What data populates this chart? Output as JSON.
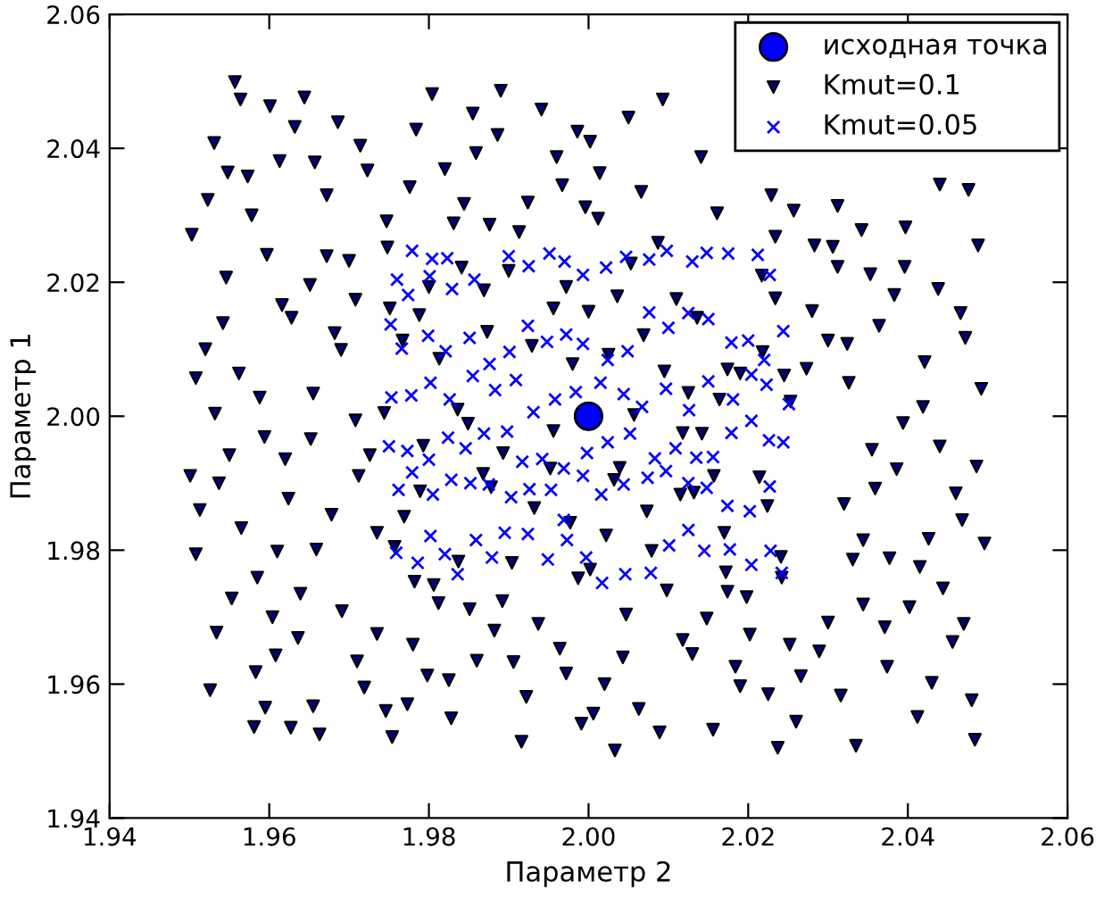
{
  "chart_data": {
    "type": "scatter",
    "xlabel": "Параметр 2",
    "ylabel": "Параметр 1",
    "xlim": [
      1.94,
      2.06
    ],
    "ylim": [
      1.94,
      2.06
    ],
    "xticks": [
      {
        "value": 1.94,
        "label": "1.94"
      },
      {
        "value": 1.96,
        "label": "1.96"
      },
      {
        "value": 1.98,
        "label": "1.98"
      },
      {
        "value": 2.0,
        "label": "2.00"
      },
      {
        "value": 2.02,
        "label": "2.02"
      },
      {
        "value": 2.04,
        "label": "2.04"
      },
      {
        "value": 2.06,
        "label": "2.06"
      }
    ],
    "yticks": [
      {
        "value": 1.94,
        "label": "1.94"
      },
      {
        "value": 1.96,
        "label": "1.96"
      },
      {
        "value": 1.98,
        "label": "1.98"
      },
      {
        "value": 2.0,
        "label": "2.00"
      },
      {
        "value": 2.02,
        "label": "2.02"
      },
      {
        "value": 2.04,
        "label": "2.04"
      },
      {
        "value": 2.06,
        "label": "2.06"
      }
    ],
    "grid": false,
    "legend": "top right",
    "series": [
      {
        "name": "исходная точка",
        "color": "#0000ff",
        "marker": "circle",
        "x": [
          2.0
        ],
        "values": [
          2.0
        ]
      },
      {
        "name": "Kmut=0.1",
        "color": "#000080",
        "marker": "triangle",
        "x": [
          1.9557,
          1.9564,
          1.9601,
          1.9644,
          1.9531,
          1.9548,
          1.9573,
          1.9523,
          1.9613,
          1.9632,
          1.9657,
          1.9686,
          1.9672,
          1.9714,
          1.9723,
          1.9503,
          1.9578,
          1.9546,
          1.9597,
          1.9672,
          1.97,
          1.9651,
          1.952,
          1.9542,
          1.9508,
          1.9562,
          1.9616,
          1.9628,
          1.9682,
          1.969,
          1.9708,
          1.9532,
          1.9588,
          1.9594,
          1.955,
          1.9501,
          1.9537,
          1.9513,
          1.9508,
          1.9565,
          1.962,
          1.9624,
          1.9655,
          1.9652,
          1.9678,
          1.9708,
          1.9712,
          1.9726,
          1.9744,
          1.9735,
          1.961,
          1.9659,
          1.9585,
          1.9553,
          1.9534,
          1.9639,
          1.9604,
          1.9691,
          1.9636,
          1.9608,
          1.9583,
          1.9526,
          1.9595,
          1.9581,
          1.9627,
          1.9655,
          1.9663,
          1.971,
          1.9719,
          1.9735,
          1.9746,
          1.9754,
          1.9773,
          1.978,
          1.9798,
          1.9825,
          1.9828,
          1.9812,
          1.9782,
          1.9851,
          1.9882,
          1.9892,
          1.986,
          1.9906,
          1.9922,
          1.9916,
          1.9937,
          1.9964,
          1.9972,
          1.9991,
          2.0006,
          2.002,
          2.0033,
          2.0043,
          2.0047,
          2.0063,
          2.0089,
          2.0098,
          2.0118,
          2.013,
          2.0148,
          2.0156,
          2.0184,
          2.019,
          2.0198,
          2.0202,
          2.0225,
          2.0237,
          2.0252,
          2.026,
          2.0266,
          2.0289,
          2.03,
          2.0316,
          2.032,
          2.0331,
          2.0335,
          2.0344,
          2.0344,
          2.0355,
          2.0359,
          2.0371,
          2.0374,
          2.0377,
          2.0386,
          2.0394,
          2.0402,
          2.0412,
          2.0415,
          2.0419,
          2.0421,
          2.0426,
          2.043,
          2.044,
          2.0444,
          2.0456,
          2.046,
          2.0468,
          2.047,
          2.048,
          2.0484,
          2.0486,
          2.0496,
          2.0492,
          2.0488,
          2.0472,
          2.0466,
          2.0438,
          2.0396,
          2.0383,
          2.0364,
          2.0353,
          2.0342,
          2.0326,
          2.0324,
          2.0312,
          2.0306,
          2.0312,
          2.03,
          2.0283,
          2.028,
          2.0273,
          2.0257,
          2.0234,
          2.0229,
          2.0218,
          2.0397,
          2.044,
          2.0476,
          2.0161,
          2.0141,
          2.0093,
          2.0087,
          2.0066,
          2.005,
          2.0014,
          2.0012,
          1.9996,
          2.0002,
          1.9986,
          1.9967,
          1.996,
          1.9941,
          1.9924,
          1.9913,
          1.989,
          1.9886,
          1.9876,
          1.9855,
          1.9859,
          1.9844,
          1.9831,
          1.982,
          1.9804,
          1.9784,
          1.9776,
          1.9747,
          1.9748,
          1.9751,
          1.9788,
          1.9767,
          1.98,
          1.9813,
          1.9841,
          1.9869,
          1.9873,
          1.99,
          1.9929,
          1.9956,
          1.9972,
          1.998,
          2.0,
          2.0036,
          2.0025,
          2.0053,
          2.0069,
          2.011,
          2.0136,
          2.0164,
          2.0174,
          2.019,
          2.0217,
          2.0234,
          2.0245,
          2.0253,
          2.0095,
          2.0125,
          2.0118,
          2.0142,
          2.0157,
          2.0214,
          2.0224,
          2.0241,
          2.0242,
          2.017,
          2.0172,
          2.0174,
          2.0132,
          2.0115,
          2.0079,
          2.0073,
          2.0057,
          2.0039,
          2.0032,
          2.0022,
          2.0002,
          1.9987,
          1.9977,
          1.9956,
          1.9952,
          1.9932,
          1.9904,
          1.9893,
          1.9868,
          1.9878,
          1.9849,
          1.9836,
          1.9793,
          1.9789,
          1.9769,
          1.9757,
          1.9806,
          1.9837
        ],
        "values": [
          2.0499,
          2.0473,
          2.0463,
          2.0476,
          2.0408,
          2.0364,
          2.0358,
          2.0323,
          2.0381,
          2.0432,
          2.0379,
          2.0439,
          2.033,
          2.0404,
          2.0367,
          2.0271,
          2.03,
          2.0207,
          2.0241,
          2.0239,
          2.0232,
          2.0196,
          2.01,
          2.0139,
          2.0057,
          2.0064,
          2.0166,
          2.0147,
          2.0124,
          2.0099,
          2.0174,
          2.0004,
          2.0028,
          1.9969,
          1.9942,
          1.9911,
          1.99,
          1.986,
          1.9794,
          1.9833,
          1.9936,
          1.9877,
          2.0034,
          1.9966,
          1.9853,
          1.9994,
          1.9911,
          1.9942,
          2.0005,
          1.9826,
          1.9798,
          1.9801,
          1.9759,
          1.9728,
          1.9677,
          1.9735,
          1.97,
          1.9709,
          1.9669,
          1.9643,
          1.9618,
          1.9591,
          1.9565,
          1.9536,
          1.9535,
          1.9567,
          1.9525,
          1.9634,
          1.9595,
          1.9675,
          1.956,
          1.9521,
          1.957,
          1.9659,
          1.9613,
          1.9606,
          1.9549,
          1.9721,
          1.9753,
          1.9712,
          1.968,
          1.9724,
          1.9635,
          1.9633,
          1.9581,
          1.9514,
          1.969,
          1.9653,
          1.9616,
          1.9541,
          1.9556,
          1.96,
          1.9501,
          1.964,
          1.9704,
          1.9563,
          1.9528,
          1.974,
          1.9666,
          1.9645,
          1.9698,
          1.9532,
          1.9626,
          1.9597,
          1.973,
          1.9674,
          1.9585,
          1.9505,
          1.9659,
          1.9544,
          1.9612,
          1.9649,
          1.9692,
          1.9583,
          1.9869,
          1.9786,
          1.9508,
          1.9719,
          1.9815,
          1.995,
          1.9892,
          1.9685,
          1.9626,
          1.9788,
          1.9921,
          1.999,
          1.9715,
          1.9551,
          1.9775,
          2.0014,
          2.0081,
          1.9817,
          1.9602,
          1.9955,
          1.9743,
          1.9663,
          1.9885,
          1.9845,
          1.969,
          1.9576,
          1.9517,
          1.9925,
          1.981,
          2.0041,
          2.0255,
          2.0117,
          2.0154,
          2.019,
          2.0223,
          2.0181,
          2.0135,
          2.0212,
          2.0278,
          2.005,
          2.0108,
          2.0223,
          2.0253,
          2.0314,
          2.0113,
          2.0255,
          2.0157,
          2.0071,
          2.0307,
          2.0268,
          2.033,
          2.0096,
          2.0282,
          2.0346,
          2.0338,
          2.0303,
          2.0387,
          2.0473,
          2.0259,
          2.0335,
          2.0446,
          2.0363,
          2.0295,
          2.0312,
          2.041,
          2.0425,
          2.0345,
          2.0387,
          2.0458,
          2.0319,
          2.0275,
          2.0486,
          2.042,
          2.0286,
          2.0452,
          2.0393,
          2.0317,
          2.0288,
          2.0369,
          2.0481,
          2.0428,
          2.0342,
          2.0291,
          2.0252,
          2.0161,
          2.0151,
          2.0113,
          2.0193,
          2.0086,
          2.0222,
          2.0188,
          2.0126,
          2.0217,
          2.0105,
          2.0161,
          2.0193,
          2.0078,
          2.0156,
          2.0179,
          2.0092,
          2.0228,
          2.0121,
          2.0175,
          2.0147,
          2.0025,
          2.007,
          2.0064,
          2.021,
          2.0176,
          2.0061,
          2.0022,
          2.0067,
          2.0035,
          1.9975,
          1.9974,
          1.9911,
          1.9909,
          1.9866,
          1.979,
          1.9759,
          1.9826,
          1.9767,
          1.9738,
          1.9886,
          1.9883,
          1.9799,
          1.9858,
          2.0002,
          1.9923,
          1.9905,
          1.9822,
          1.9771,
          1.9758,
          1.9841,
          1.9978,
          1.9922,
          1.9863,
          1.9781,
          1.9945,
          1.9914,
          1.9894,
          1.9989,
          2.001,
          1.9956,
          1.9888,
          1.985,
          1.9805,
          1.9748,
          1.9783
        ]
      },
      {
        "name": "Kmut=0.05",
        "color": "#0000ff",
        "marker": "cross",
        "x": [
          1.9779,
          1.9804,
          1.9823,
          1.976,
          1.9774,
          1.9801,
          1.9829,
          1.9857,
          1.99,
          1.9925,
          1.9951,
          1.997,
          1.9993,
          2.0022,
          2.0047,
          2.0076,
          2.0098,
          2.013,
          2.0148,
          2.0175,
          2.0212,
          2.0227,
          1.9752,
          1.9766,
          1.9799,
          1.9821,
          1.9851,
          1.9876,
          1.9901,
          1.9924,
          1.9948,
          1.9972,
          1.9993,
          2.0024,
          2.0049,
          2.0076,
          2.01,
          2.0125,
          2.015,
          2.0179,
          2.02,
          2.022,
          2.0244,
          1.9753,
          1.9778,
          1.9802,
          1.9826,
          1.9855,
          1.9883,
          1.9909,
          1.9931,
          1.9958,
          1.9984,
          2.0015,
          2.0044,
          2.0067,
          2.0097,
          2.0126,
          2.015,
          2.0181,
          2.0204,
          2.0223,
          2.0251,
          1.975,
          1.9773,
          1.98,
          1.9824,
          1.9846,
          1.9869,
          1.9898,
          1.9917,
          1.9942,
          1.9969,
          1.9998,
          2.0024,
          2.0052,
          2.0083,
          2.0109,
          2.0135,
          2.0156,
          2.0179,
          2.0204,
          2.0226,
          2.0244,
          1.9762,
          1.9779,
          1.9805,
          1.9828,
          1.9852,
          1.9875,
          1.9903,
          1.9926,
          1.9953,
          1.9969,
          1.9993,
          2.0016,
          2.0044,
          2.0074,
          2.0097,
          2.0125,
          2.0148,
          2.0174,
          2.0202,
          2.0227,
          1.9759,
          1.9786,
          1.9802,
          1.982,
          1.9836,
          1.9859,
          1.9879,
          1.9895,
          1.9924,
          1.9949,
          1.9973,
          1.9997,
          2.0017,
          2.0046,
          2.0078,
          2.0101,
          2.0125,
          2.0145,
          2.0177,
          2.0204,
          2.0228,
          2.0242
        ],
        "values": [
          2.0247,
          2.0235,
          2.0236,
          2.0204,
          2.0181,
          2.0209,
          2.019,
          2.0204,
          2.0239,
          2.0224,
          2.0243,
          2.0231,
          2.0211,
          2.0222,
          2.0238,
          2.0234,
          2.0247,
          2.0231,
          2.0244,
          2.0243,
          2.0241,
          2.0211,
          2.0137,
          2.0101,
          2.012,
          2.0097,
          2.0117,
          2.0078,
          2.0096,
          2.0135,
          2.0111,
          2.0122,
          2.0108,
          2.0084,
          2.0097,
          2.0155,
          2.0132,
          2.0154,
          2.0145,
          2.011,
          2.0113,
          2.0084,
          2.0127,
          2.0028,
          2.0031,
          2.005,
          2.0025,
          2.006,
          2.0039,
          2.0054,
          2.0006,
          2.0025,
          2.0036,
          2.005,
          2.0033,
          2.0014,
          2.0041,
          2.0009,
          2.0052,
          2.0025,
          2.0062,
          2.0047,
          2.0018,
          1.9955,
          1.9948,
          1.9935,
          1.9968,
          1.9952,
          1.9974,
          1.9977,
          1.9932,
          1.9936,
          1.9922,
          1.9945,
          1.9961,
          1.9974,
          1.9937,
          1.9952,
          1.9938,
          1.9939,
          1.9975,
          1.9993,
          1.9964,
          1.9961,
          1.989,
          1.9916,
          1.9883,
          1.9905,
          1.99,
          1.9898,
          1.9879,
          1.9891,
          1.989,
          1.9845,
          1.9911,
          1.9883,
          1.9898,
          1.9908,
          1.9918,
          1.99,
          1.9893,
          1.9866,
          1.9858,
          1.9895,
          1.9796,
          1.9781,
          1.9821,
          1.9794,
          1.9764,
          1.9815,
          1.9789,
          1.9826,
          1.9824,
          1.9786,
          1.9815,
          1.9789,
          1.9751,
          1.9764,
          1.9766,
          1.9807,
          1.983,
          1.9799,
          1.9801,
          1.9778,
          1.9799,
          1.9766
        ]
      }
    ]
  }
}
